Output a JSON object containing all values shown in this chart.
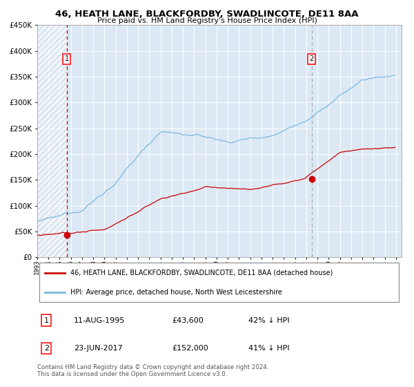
{
  "title": "46, HEATH LANE, BLACKFORDBY, SWADLINCOTE, DE11 8AA",
  "subtitle": "Price paid vs. HM Land Registry's House Price Index (HPI)",
  "legend_line1": "46, HEATH LANE, BLACKFORDBY, SWADLINCOTE, DE11 8AA (detached house)",
  "legend_line2": "HPI: Average price, detached house, North West Leicestershire",
  "annotation1_label": "1",
  "annotation1_date": "11-AUG-1995",
  "annotation1_price": "£43,600",
  "annotation1_hpi": "42% ↓ HPI",
  "annotation2_label": "2",
  "annotation2_date": "23-JUN-2017",
  "annotation2_price": "£152,000",
  "annotation2_hpi": "41% ↓ HPI",
  "footnote": "Contains HM Land Registry data © Crown copyright and database right 2024.\nThis data is licensed under the Open Government Licence v3.0.",
  "hpi_color": "#7ab8e0",
  "price_color": "#cc0000",
  "vline1_color": "#cc0000",
  "vline2_color": "#aaaaaa",
  "bg_color": "#dce9f5",
  "hatch_color": "#b0c4d8",
  "ylim": [
    0,
    450000
  ],
  "yticks": [
    0,
    50000,
    100000,
    150000,
    200000,
    250000,
    300000,
    350000,
    400000,
    450000
  ],
  "sale1_x": 1995.62,
  "sale1_y": 43600,
  "sale2_x": 2017.48,
  "sale2_y": 152000,
  "xmin": 1993.0,
  "xmax": 2025.5
}
